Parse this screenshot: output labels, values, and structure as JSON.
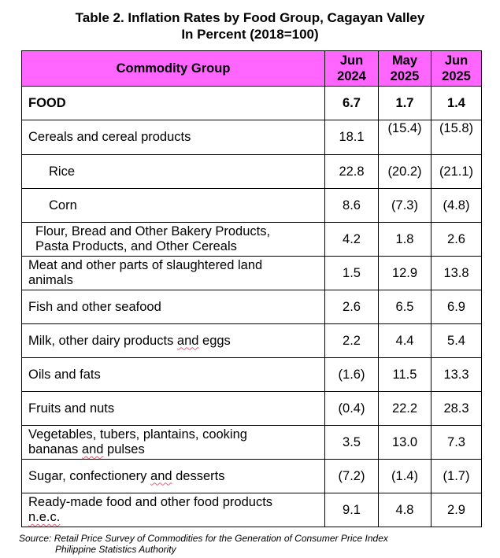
{
  "title_line1": "Table 2. Inflation Rates by Food Group, Cagayan Valley",
  "title_line2": "In Percent (2018=100)",
  "header": {
    "group": "Commodity Group",
    "c1": [
      "Jun",
      "2024"
    ],
    "c2": [
      "May",
      "2025"
    ],
    "c3": [
      "Jun",
      "2025"
    ]
  },
  "rows": [
    {
      "label": "FOOD",
      "v": [
        "6.7",
        "1.7",
        "1.4"
      ]
    },
    {
      "label": "Cereals and cereal products",
      "v": [
        "18.1",
        "(15.4)",
        "(15.8)"
      ]
    },
    {
      "label": "Rice",
      "v": [
        "22.8",
        "(20.2)",
        "(21.1)"
      ]
    },
    {
      "label": "Corn",
      "v": [
        "8.6",
        "(7.3)",
        "(4.8)"
      ]
    },
    {
      "label_l1": "Flour, Bread and Other Bakery Products,",
      "label_l2": "Pasta Products, and Other Cereals",
      "v": [
        "4.2",
        "1.8",
        "2.6"
      ]
    },
    {
      "label_l1": "Meat and other parts of slaughtered land",
      "label_l2": "animals",
      "v": [
        "1.5",
        "12.9",
        "13.8"
      ]
    },
    {
      "label": "Fish and other seafood",
      "v": [
        "2.6",
        "6.5",
        "6.9"
      ]
    },
    {
      "label_a": "Milk, other dairy products ",
      "label_b": "and",
      "label_c": " eggs",
      "v": [
        "2.2",
        "4.4",
        "5.4"
      ]
    },
    {
      "label": "Oils and fats",
      "v": [
        "(1.6)",
        "11.5",
        "13.3"
      ]
    },
    {
      "label": "Fruits and nuts",
      "v": [
        "(0.4)",
        "22.2",
        "28.3"
      ]
    },
    {
      "label_l1": "Vegetables, tubers, plantains, cooking",
      "label_l2a": "bananas ",
      "label_l2b": "and",
      "label_l2c": " pulses",
      "v": [
        "3.5",
        "13.0",
        "7.3"
      ]
    },
    {
      "label_a": "Sugar, confectionery ",
      "label_b": "and",
      "label_c": " desserts",
      "v": [
        "(7.2)",
        "(1.4)",
        "(1.7)"
      ]
    },
    {
      "label_l1": "Ready-made food and other food products",
      "label_l2": "n.e.c.",
      "v": [
        "9.1",
        "4.8",
        "2.9"
      ]
    }
  ],
  "source_line1": "Source: Retail Price Survey of Commodities for the Generation of Consumer Price Index",
  "source_line2": "Philippine Statistics Authority"
}
